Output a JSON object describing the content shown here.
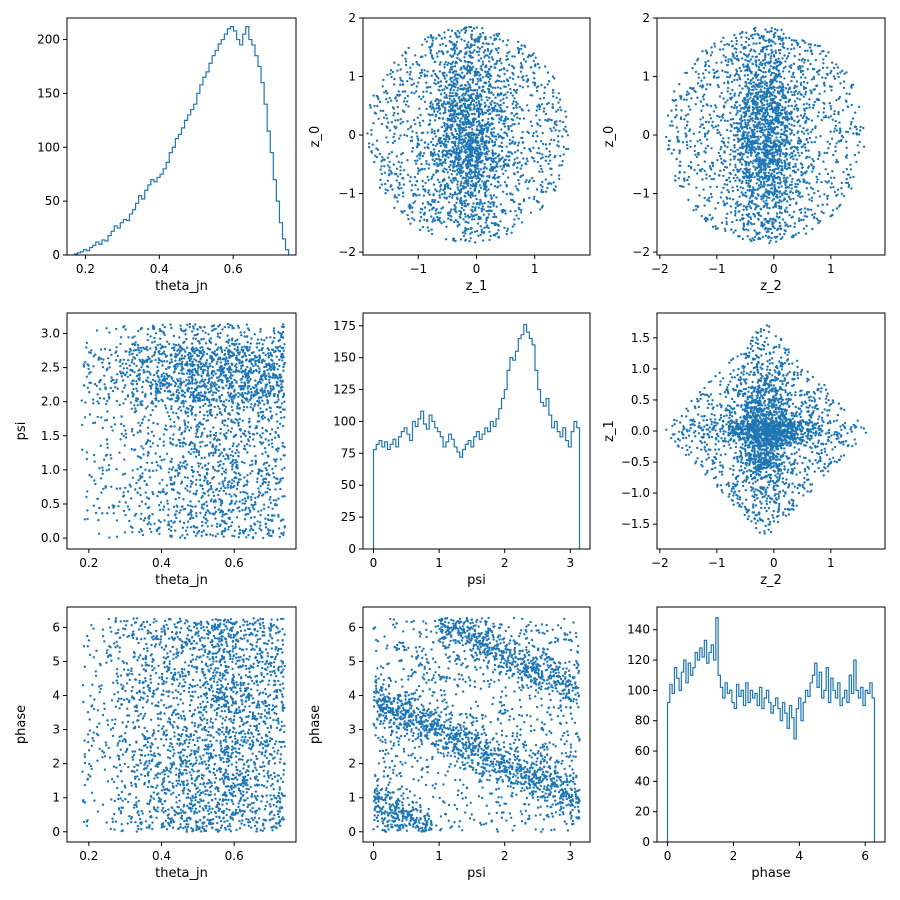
{
  "figure": {
    "layout": "3x3 corner plot",
    "colors": {
      "marker": "#1f77b4",
      "axes": "#000000",
      "background": "#ffffff"
    }
  },
  "chart_data": [
    {
      "id": "hist_theta_jn",
      "type": "histogram",
      "xlabel": "theta_jn",
      "ylabel": "",
      "xlim": [
        0.15,
        0.77
      ],
      "ylim": [
        0,
        220
      ],
      "xticks": [
        0.2,
        0.4,
        0.6
      ],
      "yticks": [
        0,
        50,
        100,
        150,
        200
      ],
      "bin_edges_range": [
        0.17,
        0.75
      ],
      "counts": [
        1,
        2,
        3,
        5,
        4,
        7,
        9,
        12,
        10,
        14,
        13,
        18,
        22,
        27,
        25,
        30,
        33,
        32,
        38,
        42,
        48,
        55,
        52,
        60,
        65,
        70,
        68,
        72,
        75,
        80,
        86,
        95,
        100,
        108,
        112,
        118,
        125,
        130,
        135,
        140,
        150,
        158,
        165,
        170,
        178,
        185,
        190,
        196,
        200,
        205,
        210,
        212,
        208,
        200,
        195,
        205,
        212,
        200,
        195,
        185,
        175,
        160,
        140,
        115,
        95,
        70,
        50,
        30,
        15,
        5
      ]
    },
    {
      "id": "scatter_z1_z0",
      "type": "scatter",
      "xlabel": "z_1",
      "ylabel": "z_0",
      "xlim": [
        -1.95,
        1.95
      ],
      "ylim": [
        -2.05,
        2.0
      ],
      "xticks": [
        -1,
        0,
        1
      ],
      "yticks": [
        -2,
        -1,
        0,
        1,
        2
      ],
      "n_points": 2600,
      "distribution": {
        "shape": "disk",
        "center": [
          -0.15,
          0.0
        ],
        "radius": [
          1.75,
          1.85
        ],
        "core_spread": [
          0.35,
          0.9
        ]
      }
    },
    {
      "id": "scatter_z2_z0",
      "type": "scatter",
      "xlabel": "z_2",
      "ylabel": "z_0",
      "xlim": [
        -2.05,
        1.95
      ],
      "ylim": [
        -2.05,
        2.0
      ],
      "xticks": [
        -2,
        -1,
        0,
        1
      ],
      "yticks": [
        -2,
        -1,
        0,
        1,
        2
      ],
      "n_points": 2600,
      "distribution": {
        "shape": "disk",
        "center": [
          -0.15,
          0.0
        ],
        "radius": [
          1.75,
          1.85
        ],
        "core_spread": [
          0.3,
          0.9
        ]
      }
    },
    {
      "id": "scatter_thetajn_psi",
      "type": "scatter",
      "xlabel": "theta_jn",
      "ylabel": "psi",
      "xlim": [
        0.14,
        0.77
      ],
      "ylim": [
        -0.16,
        3.3
      ],
      "xticks": [
        0.2,
        0.4,
        0.6
      ],
      "yticks": [
        0.0,
        0.5,
        1.0,
        1.5,
        2.0,
        2.5,
        3.0
      ],
      "n_points": 2600,
      "distribution": {
        "x_range": [
          0.18,
          0.74
        ],
        "y_range": [
          0.0,
          3.14
        ],
        "x_peak": 0.58,
        "dense_y": [
          2.0,
          2.8
        ]
      }
    },
    {
      "id": "hist_psi",
      "type": "histogram",
      "xlabel": "psi",
      "ylabel": "",
      "xlim": [
        -0.16,
        3.3
      ],
      "ylim": [
        0,
        185
      ],
      "xticks": [
        0,
        1,
        2,
        3
      ],
      "yticks": [
        0,
        25,
        50,
        75,
        100,
        125,
        150,
        175
      ],
      "bin_edges_range": [
        0.0,
        3.14
      ],
      "counts": [
        78,
        82,
        85,
        80,
        84,
        78,
        82,
        86,
        80,
        88,
        92,
        95,
        90,
        85,
        100,
        96,
        102,
        108,
        98,
        94,
        105,
        100,
        95,
        92,
        88,
        80,
        84,
        90,
        86,
        80,
        76,
        72,
        78,
        82,
        85,
        80,
        88,
        92,
        86,
        90,
        95,
        92,
        100,
        96,
        102,
        110,
        118,
        125,
        140,
        150,
        148,
        155,
        165,
        168,
        176,
        170,
        165,
        160,
        140,
        125,
        115,
        112,
        118,
        105,
        95,
        100,
        92,
        88,
        95,
        85,
        80,
        92,
        100,
        95
      ]
    },
    {
      "id": "scatter_z2_z1",
      "type": "scatter",
      "xlabel": "z_2",
      "ylabel": "z_1",
      "xlim": [
        -2.05,
        1.95
      ],
      "ylim": [
        -1.9,
        1.9
      ],
      "xticks": [
        -2,
        -1,
        0,
        1
      ],
      "yticks": [
        -1.5,
        -1.0,
        -0.5,
        0.0,
        0.5,
        1.0,
        1.5
      ],
      "n_points": 2600,
      "distribution": {
        "shape": "diamond",
        "center": [
          -0.15,
          0.0
        ],
        "half_width": 1.8,
        "half_height": 1.75
      }
    },
    {
      "id": "scatter_thetajn_phase",
      "type": "scatter",
      "xlabel": "theta_jn",
      "ylabel": "phase",
      "xlim": [
        0.14,
        0.77
      ],
      "ylim": [
        -0.3,
        6.6
      ],
      "xticks": [
        0.2,
        0.4,
        0.6
      ],
      "yticks": [
        0,
        1,
        2,
        3,
        4,
        5,
        6
      ],
      "n_points": 2600,
      "distribution": {
        "x_range": [
          0.18,
          0.74
        ],
        "y_range": [
          0.0,
          6.28
        ],
        "x_peak": 0.58
      }
    },
    {
      "id": "scatter_psi_phase",
      "type": "scatter",
      "xlabel": "psi",
      "ylabel": "phase",
      "xlim": [
        -0.16,
        3.3
      ],
      "ylim": [
        -0.3,
        6.6
      ],
      "xticks": [
        0,
        1,
        2,
        3
      ],
      "yticks": [
        0,
        1,
        2,
        3,
        4,
        5,
        6
      ],
      "n_points": 2800,
      "distribution": {
        "bands": [
          {
            "from": [
              0.0,
              3.9
            ],
            "to": [
              3.14,
              0.9
            ]
          },
          {
            "from": [
              1.0,
              6.2
            ],
            "to": [
              3.14,
              4.1
            ]
          },
          {
            "from": [
              0.0,
              0.9
            ],
            "to": [
              0.9,
              0.0
            ]
          }
        ]
      }
    },
    {
      "id": "hist_phase",
      "type": "histogram",
      "xlabel": "phase",
      "ylabel": "",
      "xlim": [
        -0.32,
        6.6
      ],
      "ylim": [
        0,
        155
      ],
      "xticks": [
        0,
        2,
        4,
        6
      ],
      "yticks": [
        0,
        20,
        40,
        60,
        80,
        100,
        120,
        140
      ],
      "bin_edges_range": [
        0.0,
        6.28
      ],
      "counts": [
        92,
        104,
        98,
        115,
        108,
        100,
        112,
        120,
        105,
        118,
        110,
        115,
        125,
        120,
        128,
        122,
        133,
        118,
        125,
        130,
        120,
        148,
        110,
        102,
        95,
        105,
        98,
        100,
        92,
        88,
        104,
        96,
        100,
        90,
        105,
        92,
        100,
        95,
        98,
        90,
        102,
        88,
        95,
        100,
        92,
        85,
        90,
        95,
        88,
        80,
        92,
        85,
        75,
        90,
        82,
        68,
        88,
        95,
        80,
        92,
        100,
        96,
        105,
        110,
        118,
        102,
        112,
        95,
        100,
        115,
        92,
        108,
        100,
        95,
        105,
        90,
        95,
        100,
        92,
        110,
        98,
        120,
        100,
        95,
        102,
        90,
        100,
        98,
        105,
        95
      ]
    }
  ]
}
